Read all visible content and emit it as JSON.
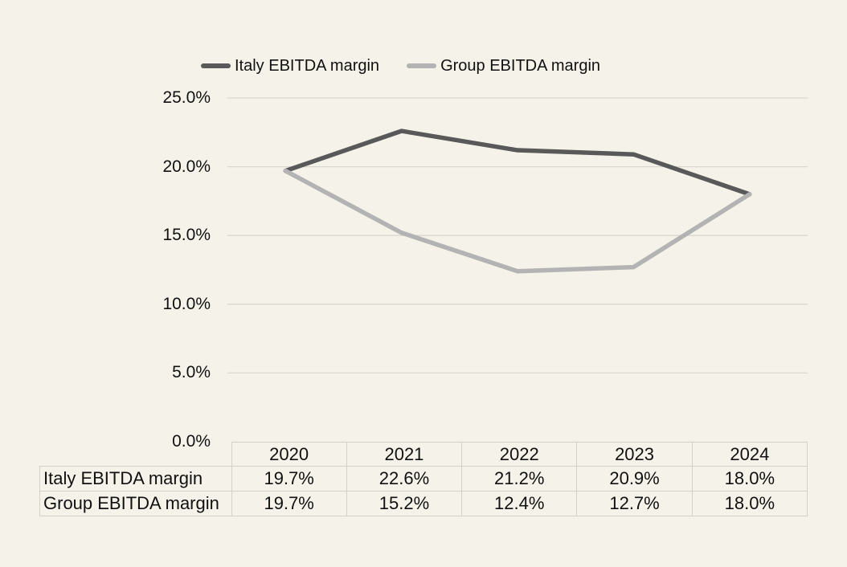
{
  "background_color": "#f5f2e9",
  "text_color": "#111111",
  "gridline_color": "#d8d7d1",
  "table_border_color": "#d2d1c9",
  "chart_data": {
    "type": "line",
    "categories": [
      "2020",
      "2021",
      "2022",
      "2023",
      "2024"
    ],
    "series": [
      {
        "name": "Italy EBITDA margin",
        "color": "#595959",
        "values": [
          19.7,
          22.6,
          21.2,
          20.9,
          18.0
        ]
      },
      {
        "name": "Group EBITDA margin",
        "color": "#b3b3b3",
        "values": [
          19.7,
          15.2,
          12.4,
          12.7,
          18.0
        ]
      }
    ],
    "title": "",
    "xlabel": "",
    "ylabel": "",
    "ylim": [
      0,
      25
    ],
    "ytick_step": 5,
    "ytick_labels": [
      "0.0%",
      "5.0%",
      "10.0%",
      "15.0%",
      "20.0%",
      "25.0%"
    ],
    "grid": true,
    "legend_position": "top"
  },
  "table": {
    "header": [
      "",
      "2020",
      "2021",
      "2022",
      "2023",
      "2024"
    ],
    "rows": [
      {
        "label": "Italy EBITDA margin",
        "values": [
          "19.7%",
          "22.6%",
          "21.2%",
          "20.9%",
          "18.0%"
        ]
      },
      {
        "label": "Group EBITDA margin",
        "values": [
          "19.7%",
          "15.2%",
          "12.4%",
          "12.7%",
          "18.0%"
        ]
      }
    ]
  }
}
